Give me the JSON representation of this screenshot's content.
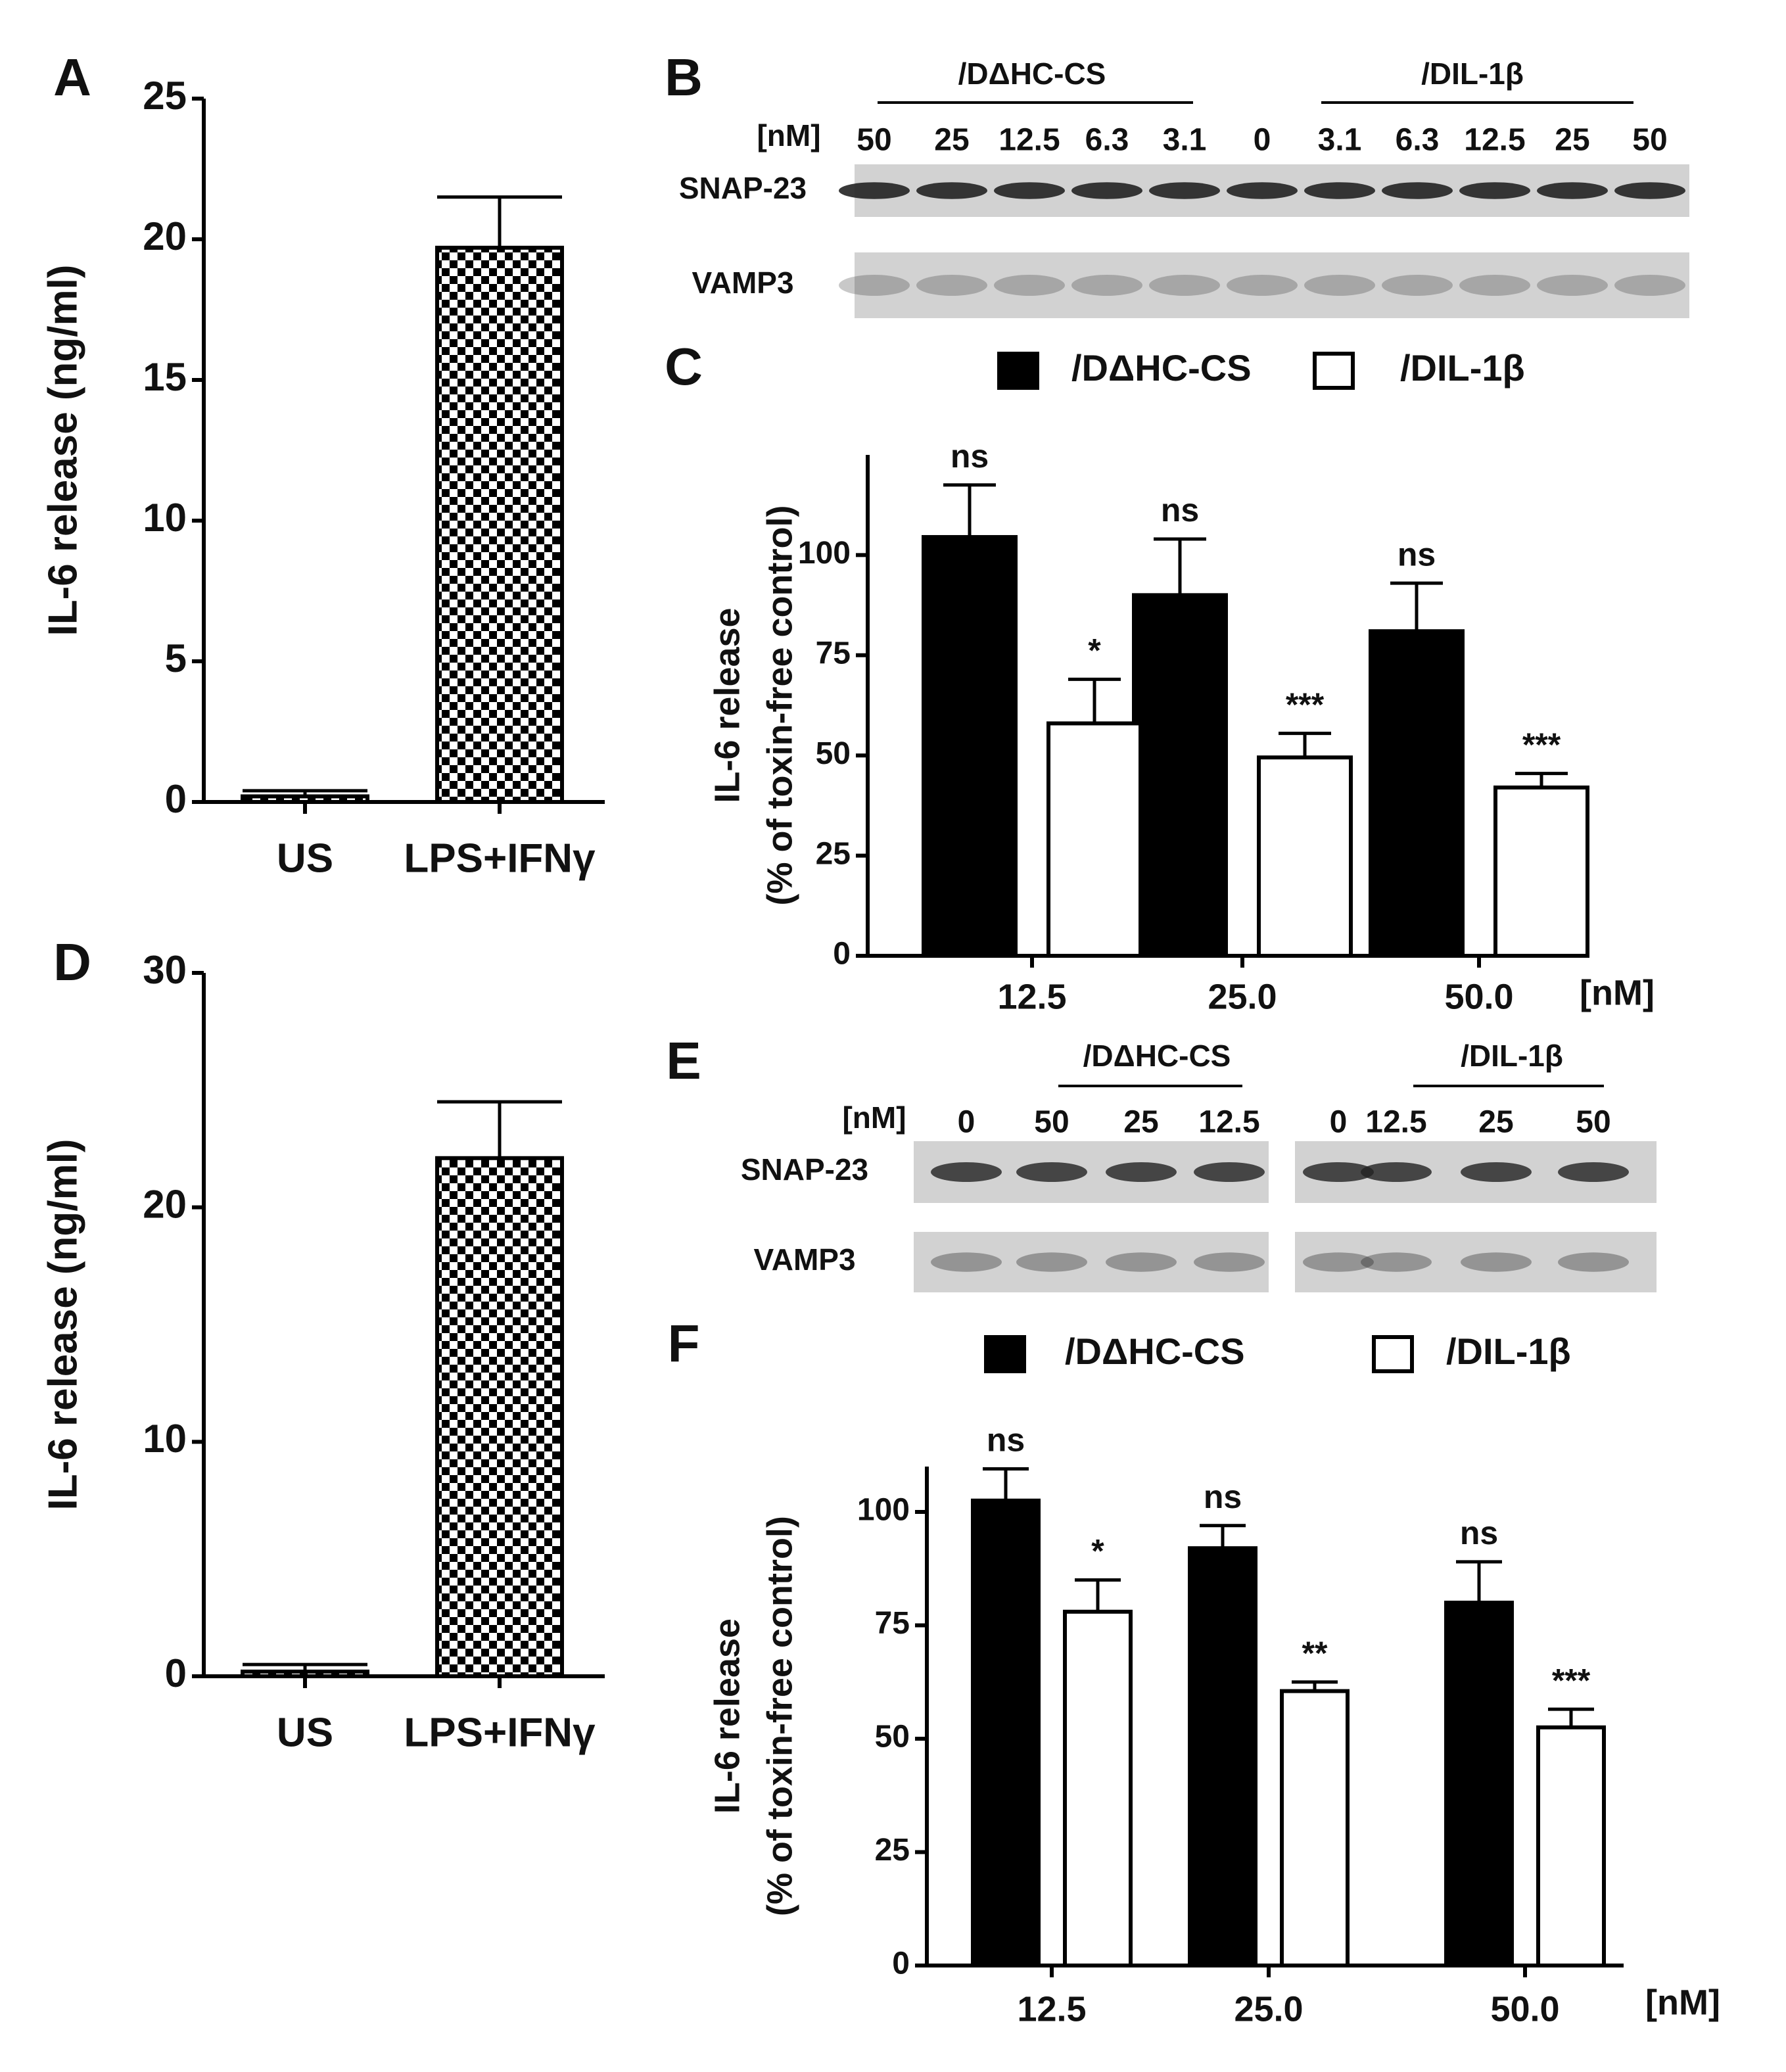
{
  "chart_data": [
    {
      "type": "bar",
      "panel_label": "A",
      "y_label": "IL-6 release (ng/ml)",
      "categories": [
        "US",
        "LPS+IFNγ"
      ],
      "values": [
        0.2,
        19.7
      ],
      "errors": [
        0.2,
        1.8
      ],
      "color": "#000000",
      "fill_pattern": "checkerboard",
      "ylim": [
        0,
        25
      ],
      "yticks": [
        0,
        5,
        10,
        15,
        20,
        25
      ]
    },
    {
      "type": "bar",
      "panel_label": "C",
      "y_label": [
        "IL-6 release",
        "(% of toxin-free control)"
      ],
      "categories": [
        "12.5",
        "25.0",
        "50.0"
      ],
      "x_unit": "[nM]",
      "series": [
        {
          "name": "/DΔHC-CS",
          "color": "#000000",
          "values": [
            104.5,
            90,
            81
          ],
          "errors": [
            13,
            14,
            12
          ],
          "annotations": [
            "ns",
            "ns",
            "ns"
          ]
        },
        {
          "name": "/DIL-1β",
          "color": "#ffffff",
          "values": [
            58,
            49.5,
            42
          ],
          "errors": [
            11,
            6,
            3.5
          ],
          "annotations": [
            "*",
            "***",
            "***"
          ]
        }
      ],
      "ylim": [
        0,
        125
      ],
      "yticks": [
        0,
        25,
        50,
        75,
        100
      ]
    },
    {
      "type": "bar",
      "panel_label": "D",
      "y_label": "IL-6 release (ng/ml)",
      "categories": [
        "US",
        "LPS+IFNγ"
      ],
      "values": [
        0.2,
        22.1
      ],
      "errors": [
        0.3,
        2.4
      ],
      "color": "#000000",
      "fill_pattern": "checkerboard",
      "ylim": [
        0,
        30
      ],
      "yticks": [
        0,
        10,
        20,
        30
      ]
    },
    {
      "type": "bar",
      "panel_label": "F",
      "y_label": [
        "IL-6 release",
        "(% of toxin-free control)"
      ],
      "categories": [
        "12.5",
        "25.0",
        "50.0"
      ],
      "x_unit": "[nM]",
      "series": [
        {
          "name": "/DΔHC-CS",
          "color": "#000000",
          "values": [
            102.5,
            92,
            80
          ],
          "errors": [
            7,
            5,
            9
          ],
          "annotations": [
            "ns",
            "ns",
            "ns"
          ]
        },
        {
          "name": "/DIL-1β",
          "color": "#ffffff",
          "values": [
            78,
            60.5,
            52.5
          ],
          "errors": [
            7,
            2,
            4
          ],
          "annotations": [
            "*",
            "**",
            "***"
          ]
        }
      ],
      "ylim": [
        0,
        110
      ],
      "yticks": [
        0,
        25,
        50,
        75,
        100
      ]
    }
  ],
  "blots": [
    {
      "panel_label": "B",
      "unit": "[nM]",
      "groups": [
        "/DΔHC-CS",
        "/DIL-1β"
      ],
      "lanes": [
        "50",
        "25",
        "12.5",
        "6.3",
        "3.1",
        "0",
        "3.1",
        "6.3",
        "12.5",
        "25",
        "50"
      ],
      "rows": [
        "SNAP-23",
        "VAMP3"
      ]
    },
    {
      "panel_label": "E",
      "unit": "[nM]",
      "groups": [
        "/DΔHC-CS",
        "/DIL-1β"
      ],
      "lanes": [
        "0",
        "50",
        "25",
        "12.5",
        "0",
        "12.5",
        "25",
        "50"
      ],
      "rows": [
        "SNAP-23",
        "VAMP3"
      ]
    }
  ]
}
